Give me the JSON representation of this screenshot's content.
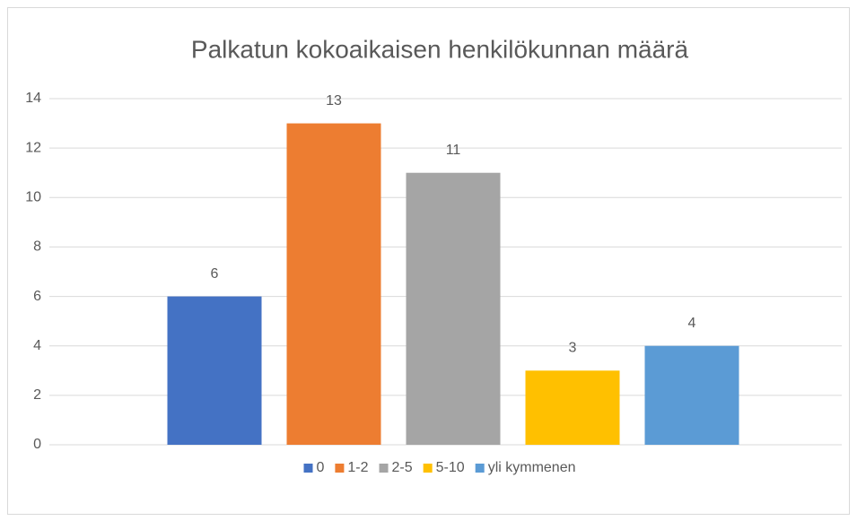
{
  "chart_data": {
    "type": "bar",
    "title": "Palkatun kokoaikaisen henkilökunnan määrä",
    "series": [
      {
        "name": "0",
        "color": "#4472c4",
        "values": [
          6
        ]
      },
      {
        "name": "1-2",
        "color": "#ed7d31",
        "values": [
          13
        ]
      },
      {
        "name": "2-5",
        "color": "#a5a5a5",
        "values": [
          11
        ]
      },
      {
        "name": "5-10",
        "color": "#ffc000",
        "values": [
          3
        ]
      },
      {
        "name": "yli kymmenen",
        "color": "#5b9bd5",
        "values": [
          4
        ]
      }
    ],
    "ylim": [
      0,
      14
    ],
    "yticks": [
      0,
      2,
      4,
      6,
      8,
      10,
      12,
      14
    ],
    "grid": true,
    "legend": "bottom"
  }
}
